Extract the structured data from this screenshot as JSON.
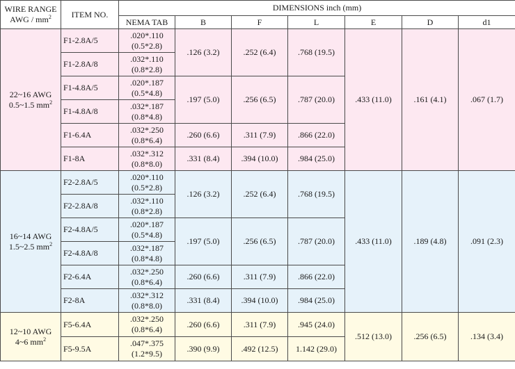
{
  "header": {
    "wire_range_line1": "WIRE RANGE",
    "wire_range_line2": "AWG / mm",
    "wire_range_sup": "2",
    "item_no": "ITEM NO.",
    "dimensions": "DIMENSIONS inch (mm)",
    "cols": [
      "NEMA TAB",
      "B",
      "F",
      "L",
      "E",
      "D",
      "d1"
    ]
  },
  "colors": {
    "group1": "#fde8f1",
    "group2": "#e6f2fa",
    "group3": "#fffbe4"
  },
  "groups": [
    {
      "awg": "22~16 AWG",
      "mm": "0.5~1.5 mm",
      "mm_sup": "2",
      "E": ".433 (11.0)",
      "D": ".161 (4.1)",
      "d1": ".067 (1.7)",
      "rows": [
        {
          "item": "F1-2.8A/5",
          "tab1": ".020*.110",
          "tab2": "(0.5*2.8)"
        },
        {
          "item": "F1-2.8A/8",
          "tab1": ".032*.110",
          "tab2": "(0.8*2.8)"
        },
        {
          "item": "F1-4.8A/5",
          "tab1": ".020*.187",
          "tab2": "(0.5*4.8)"
        },
        {
          "item": "F1-4.8A/8",
          "tab1": ".032*.187",
          "tab2": "(0.8*4.8)"
        },
        {
          "item": "F1-6.4A",
          "tab1": ".032*.250",
          "tab2": "(0.8*6.4)"
        },
        {
          "item": "F1-8A",
          "tab1": ".032*.312",
          "tab2": "(0.8*8.0)"
        }
      ],
      "bfl": [
        {
          "B": ".126 (3.2)",
          "F": ".252 (6.4)",
          "L": ".768 (19.5)"
        },
        {
          "B": ".197 (5.0)",
          "F": ".256 (6.5)",
          "L": ".787 (20.0)"
        },
        {
          "B": ".260 (6.6)",
          "F": ".311 (7.9)",
          "L": ".866 (22.0)"
        },
        {
          "B": ".331 (8.4)",
          "F": ".394 (10.0)",
          "L": ".984 (25.0)"
        }
      ]
    },
    {
      "awg": "16~14 AWG",
      "mm": "1.5~2.5 mm",
      "mm_sup": "2",
      "E": ".433 (11.0)",
      "D": ".189 (4.8)",
      "d1": ".091 (2.3)",
      "rows": [
        {
          "item": "F2-2.8A/5",
          "tab1": ".020*.110",
          "tab2": "(0.5*2.8)"
        },
        {
          "item": "F2-2.8A/8",
          "tab1": ".032*.110",
          "tab2": "(0.8*2.8)"
        },
        {
          "item": "F2-4.8A/5",
          "tab1": ".020*.187",
          "tab2": "(0.5*4.8)"
        },
        {
          "item": "F2-4.8A/8",
          "tab1": ".032*.187",
          "tab2": "(0.8*4.8)"
        },
        {
          "item": "F2-6.4A",
          "tab1": ".032*.250",
          "tab2": "(0.8*6.4)"
        },
        {
          "item": "F2-8A",
          "tab1": ".032*.312",
          "tab2": "(0.8*8.0)"
        }
      ],
      "bfl": [
        {
          "B": ".126 (3.2)",
          "F": ".252 (6.4)",
          "L": ".768 (19.5)"
        },
        {
          "B": ".197 (5.0)",
          "F": ".256 (6.5)",
          "L": ".787 (20.0)"
        },
        {
          "B": ".260 (6.6)",
          "F": ".311 (7.9)",
          "L": ".866 (22.0)"
        },
        {
          "B": ".331 (8.4)",
          "F": ".394 (10.0)",
          "L": ".984 (25.0)"
        }
      ]
    },
    {
      "awg": "12~10 AWG",
      "mm": "4~6 mm",
      "mm_sup": "2",
      "E": ".512 (13.0)",
      "D": ".256 (6.5)",
      "d1": ".134 (3.4)",
      "rows": [
        {
          "item": "F5-6.4A",
          "tab1": ".032*.250",
          "tab2": "(0.8*6.4)"
        },
        {
          "item": "F5-9.5A",
          "tab1": ".047*.375",
          "tab2": "(1.2*9.5)"
        }
      ],
      "bfl": [
        {
          "B": ".260 (6.6)",
          "F": ".311 (7.9)",
          "L": ".945 (24.0)"
        },
        {
          "B": ".390 (9.9)",
          "F": ".492 (12.5)",
          "L": "1.142 (29.0)"
        }
      ]
    }
  ]
}
